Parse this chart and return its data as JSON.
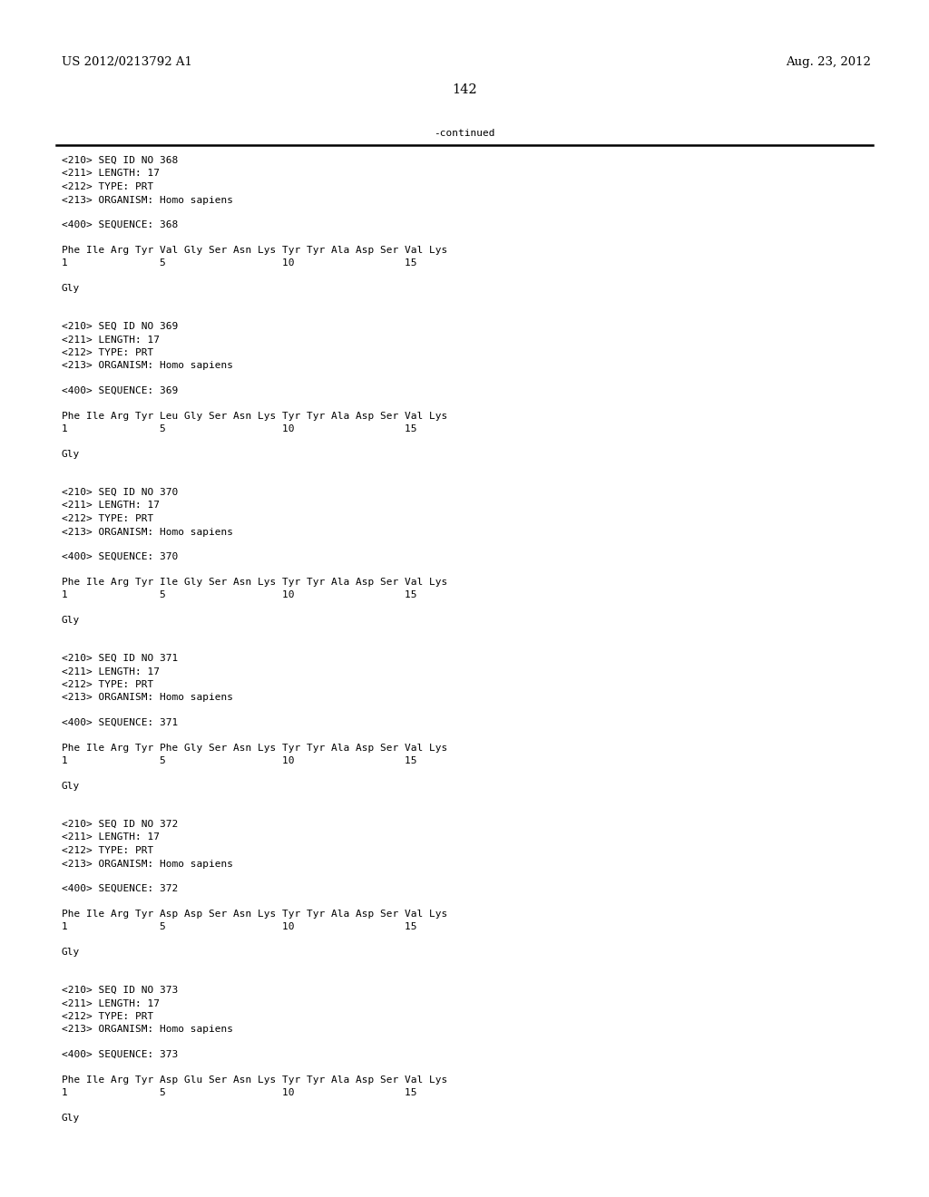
{
  "header_left": "US 2012/0213792 A1",
  "header_right": "Aug. 23, 2012",
  "page_number": "142",
  "continued_text": "-continued",
  "background_color": "#ffffff",
  "text_color": "#000000",
  "font_size_header": 9.5,
  "font_size_body": 8.0,
  "font_size_page": 10.5,
  "blocks": [
    {
      "meta": [
        "<210> SEQ ID NO 368",
        "<211> LENGTH: 17",
        "<212> TYPE: PRT",
        "<213> ORGANISM: Homo sapiens"
      ],
      "sequence_label": "<400> SEQUENCE: 368",
      "sequence_line": "Phe Ile Arg Tyr Val Gly Ser Asn Lys Tyr Tyr Ala Asp Ser Val Lys",
      "position_line": "1               5                   10                  15",
      "tail": "Gly"
    },
    {
      "meta": [
        "<210> SEQ ID NO 369",
        "<211> LENGTH: 17",
        "<212> TYPE: PRT",
        "<213> ORGANISM: Homo sapiens"
      ],
      "sequence_label": "<400> SEQUENCE: 369",
      "sequence_line": "Phe Ile Arg Tyr Leu Gly Ser Asn Lys Tyr Tyr Ala Asp Ser Val Lys",
      "position_line": "1               5                   10                  15",
      "tail": "Gly"
    },
    {
      "meta": [
        "<210> SEQ ID NO 370",
        "<211> LENGTH: 17",
        "<212> TYPE: PRT",
        "<213> ORGANISM: Homo sapiens"
      ],
      "sequence_label": "<400> SEQUENCE: 370",
      "sequence_line": "Phe Ile Arg Tyr Ile Gly Ser Asn Lys Tyr Tyr Ala Asp Ser Val Lys",
      "position_line": "1               5                   10                  15",
      "tail": "Gly"
    },
    {
      "meta": [
        "<210> SEQ ID NO 371",
        "<211> LENGTH: 17",
        "<212> TYPE: PRT",
        "<213> ORGANISM: Homo sapiens"
      ],
      "sequence_label": "<400> SEQUENCE: 371",
      "sequence_line": "Phe Ile Arg Tyr Phe Gly Ser Asn Lys Tyr Tyr Ala Asp Ser Val Lys",
      "position_line": "1               5                   10                  15",
      "tail": "Gly"
    },
    {
      "meta": [
        "<210> SEQ ID NO 372",
        "<211> LENGTH: 17",
        "<212> TYPE: PRT",
        "<213> ORGANISM: Homo sapiens"
      ],
      "sequence_label": "<400> SEQUENCE: 372",
      "sequence_line": "Phe Ile Arg Tyr Asp Asp Ser Asn Lys Tyr Tyr Ala Asp Ser Val Lys",
      "position_line": "1               5                   10                  15",
      "tail": "Gly"
    },
    {
      "meta": [
        "<210> SEQ ID NO 373",
        "<211> LENGTH: 17",
        "<212> TYPE: PRT",
        "<213> ORGANISM: Homo sapiens"
      ],
      "sequence_label": "<400> SEQUENCE: 373",
      "sequence_line": "Phe Ile Arg Tyr Asp Glu Ser Asn Lys Tyr Tyr Ala Asp Ser Val Lys",
      "position_line": "1               5                   10                  15",
      "tail": "Gly"
    }
  ]
}
